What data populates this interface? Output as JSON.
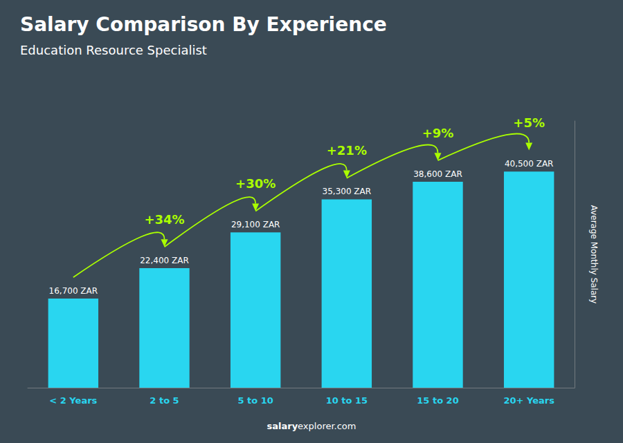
{
  "chart_data": {
    "type": "bar",
    "title": "Salary Comparison By Experience",
    "subtitle": "Education Resource Specialist",
    "categories": [
      "< 2 Years",
      "2 to 5",
      "5 to 10",
      "10 to 15",
      "15 to 20",
      "20+ Years"
    ],
    "values": [
      16700,
      22400,
      29100,
      35300,
      38600,
      40500
    ],
    "value_labels": [
      "16,700 ZAR",
      "22,400 ZAR",
      "29,100 ZAR",
      "35,300 ZAR",
      "38,600 ZAR",
      "40,500 ZAR"
    ],
    "data_labels": true,
    "color": "#29d6f0",
    "ylim": [
      0,
      50000
    ],
    "ylabel": "Average Monthly Salary",
    "tick_labels": "x",
    "grid": false,
    "annotations": [
      "+34%",
      "+30%",
      "+21%",
      "+9%",
      "+5%"
    ],
    "watermark": [
      "salary",
      "explorer.com"
    ]
  }
}
